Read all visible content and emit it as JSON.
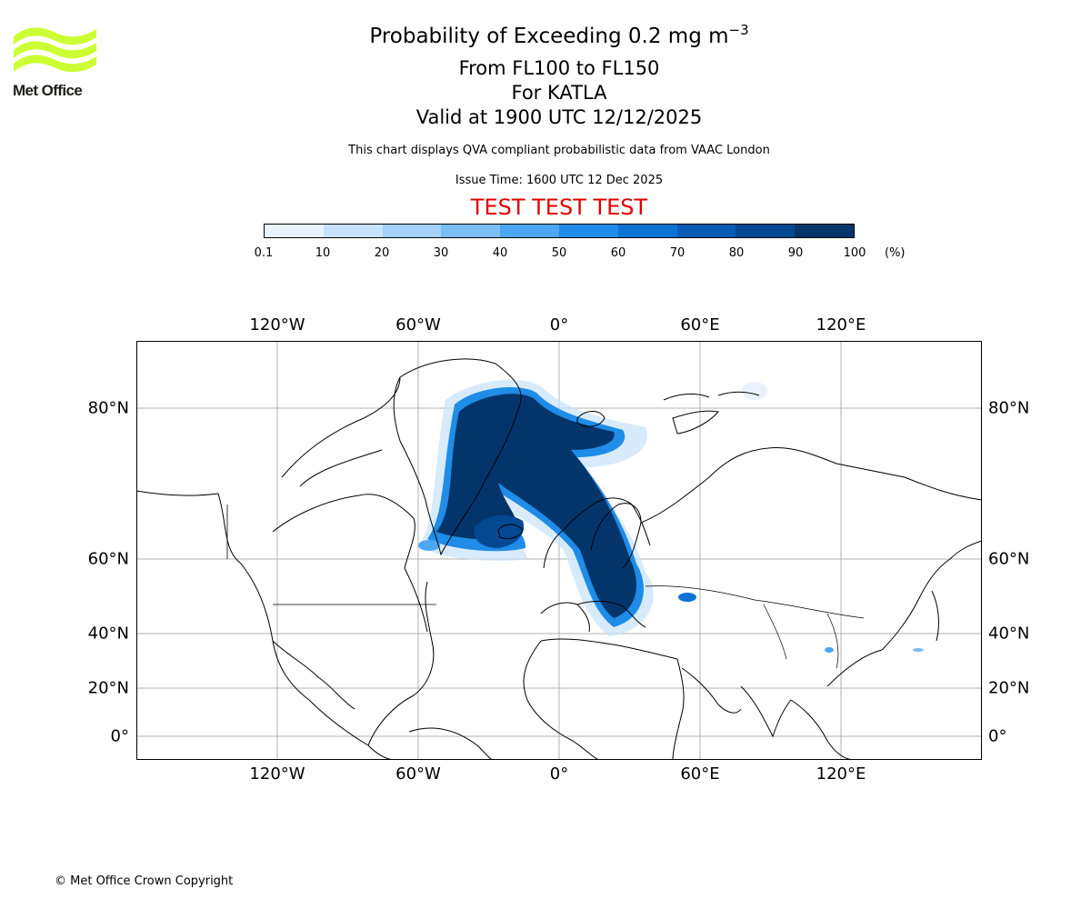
{
  "brand": {
    "name": "Met Office",
    "logo_color": "#ccff33",
    "logo_text_color": "#1d1d1b"
  },
  "header": {
    "title_main": "Probability of Exceeding 0.2 mg m",
    "title_exponent": "−3",
    "levels": "From FL100 to FL150",
    "volcano": "For KATLA",
    "valid_time": "Valid at 1900 UTC 12/12/2025",
    "description": "This chart displays QVA compliant probabilistic data from VAAC London",
    "issue_time": "Issue Time: 1600 UTC 12 Dec 2025",
    "test_banner": "TEST TEST TEST",
    "test_color": "#e00000"
  },
  "colorbar": {
    "ticks": [
      "0.1",
      "10",
      "20",
      "30",
      "40",
      "50",
      "60",
      "70",
      "80",
      "90",
      "100"
    ],
    "units": "(%)",
    "colors": [
      "#e8f3fe",
      "#c6e2fb",
      "#a3d1fa",
      "#7cbdf6",
      "#4da6f3",
      "#1f8ce8",
      "#0b73d4",
      "#065cb5",
      "#044892",
      "#03356b"
    ]
  },
  "map": {
    "lon_labels_top": [
      "120°W",
      "60°W",
      "0°",
      "60°E",
      "120°E"
    ],
    "lon_labels_bottom": [
      "120°W",
      "60°W",
      "0°",
      "60°E",
      "120°E"
    ],
    "lat_labels": [
      "80°N",
      "60°N",
      "40°N",
      "20°N",
      "0°"
    ],
    "grid_color": "#b0b0b0",
    "coast_color": "#000000"
  },
  "footer": {
    "copyright": "© Met Office Crown Copyright"
  }
}
